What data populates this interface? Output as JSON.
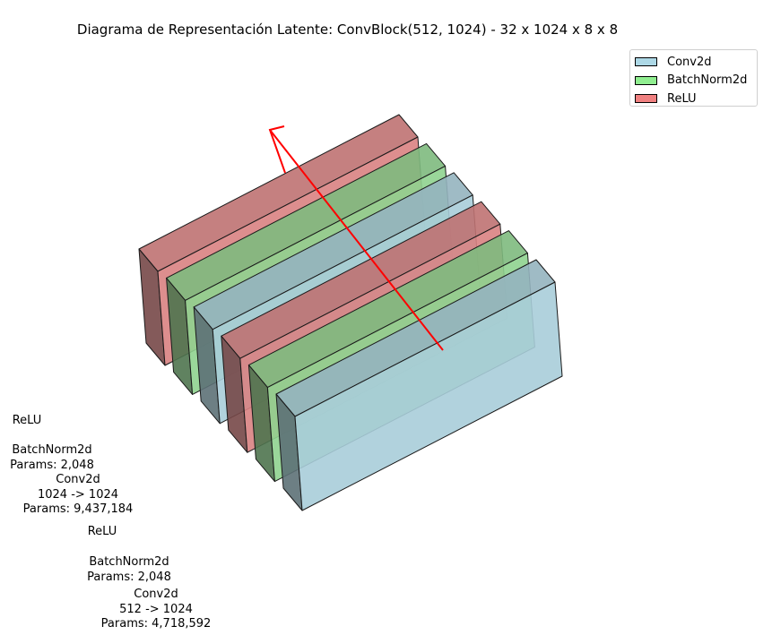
{
  "title": "Diagrama de Representación Latente: ConvBlock(512, 1024) - 32 x 1024 x 8 x 8",
  "legend": {
    "items": [
      {
        "label": "Conv2d",
        "color": "#add8e6"
      },
      {
        "label": "BatchNorm2d",
        "color": "#90ee90"
      },
      {
        "label": "ReLU",
        "color": "#f08080"
      }
    ]
  },
  "layers": [
    {
      "type": "ReLU",
      "color": "#d98282",
      "label_lines": [
        "ReLU"
      ]
    },
    {
      "type": "BatchNorm2d",
      "color": "#8fd38f",
      "label_lines": [
        "BatchNorm2d",
        "Params: 2,048"
      ]
    },
    {
      "type": "Conv2d",
      "color": "#a9cdd9",
      "label_lines": [
        "Conv2d",
        "1024 -> 1024",
        "Params: 9,437,184"
      ]
    },
    {
      "type": "ReLU",
      "color": "#d98282",
      "label_lines": [
        "ReLU"
      ]
    },
    {
      "type": "BatchNorm2d",
      "color": "#8fd38f",
      "label_lines": [
        "BatchNorm2d",
        "Params: 2,048"
      ]
    },
    {
      "type": "Conv2d",
      "color": "#a9cdd9",
      "label_lines": [
        "Conv2d",
        "512 -> 1024",
        "Params: 4,718,592"
      ]
    }
  ],
  "flow_arrow_color": "#ff0000"
}
